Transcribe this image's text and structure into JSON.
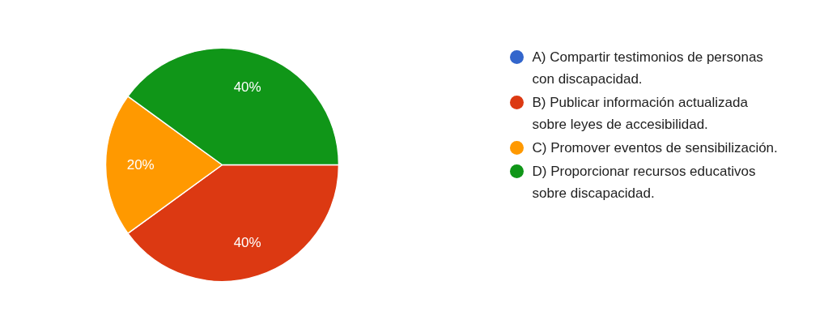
{
  "chart_data": {
    "type": "pie",
    "categories": [
      "A) Compartir testimonios de personas con discapacidad.",
      "B) Publicar información actualizada sobre leyes de accesibilidad.",
      "C) Promover eventos de sensibilización.",
      "D) Proporcionar recursos educativos sobre discapacidad."
    ],
    "values": [
      0,
      40,
      20,
      40
    ],
    "colors": [
      "#3366cc",
      "#dc3912",
      "#ff9900",
      "#109618"
    ],
    "value_labels": [
      null,
      "40%",
      "20%",
      "40%"
    ],
    "legend": "right"
  }
}
